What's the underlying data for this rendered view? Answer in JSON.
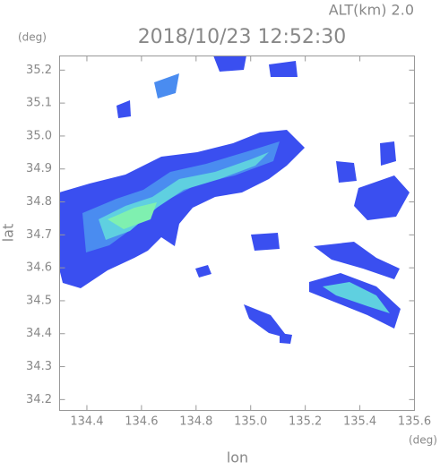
{
  "header": {
    "altitude": "ALT(km) 2.0",
    "timestamp": "2018/10/23 12:52:30"
  },
  "axes": {
    "x": {
      "label": "lon",
      "unit": "(deg)",
      "lim": [
        134.3,
        135.6
      ],
      "ticks": [
        134.4,
        134.6,
        134.8,
        {
          "value": 135,
          "label": "135.0"
        },
        135.2,
        135.4,
        135.6
      ]
    },
    "y": {
      "label": "lat",
      "unit": "(deg)",
      "lim": [
        34.167,
        35.243
      ],
      "ticks": [
        34.2,
        34.3,
        34.4,
        34.5,
        34.6,
        34.7,
        34.8,
        34.9,
        {
          "value": 35,
          "label": "35.0"
        },
        35.1,
        35.2
      ]
    }
  }
}
